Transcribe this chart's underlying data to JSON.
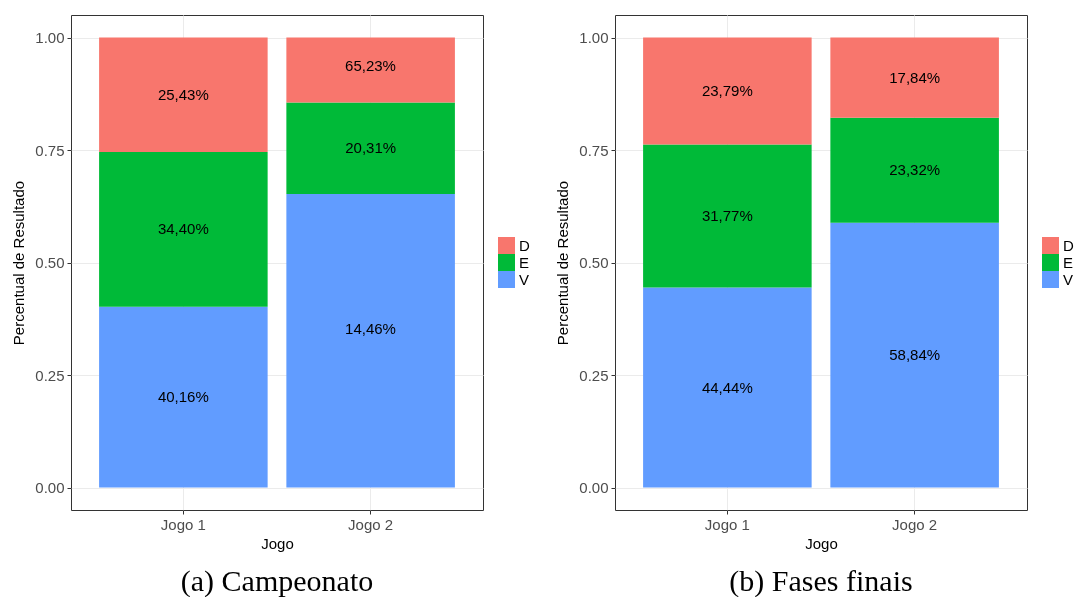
{
  "chart_data": [
    {
      "type": "bar",
      "title": "(a) Campeonato",
      "xlabel": "Jogo",
      "ylabel": "Percentual de Resultado",
      "categories": [
        "Jogo 1",
        "Jogo 2"
      ],
      "stacked": true,
      "series": [
        {
          "name": "V",
          "color": "#619cff",
          "values": [
            0.4016,
            0.6523
          ],
          "value_labels": [
            "40,16%",
            null
          ]
        },
        {
          "name": "E",
          "color": "#00ba38",
          "values": [
            0.344,
            0.2031
          ],
          "value_labels": [
            "34,40%",
            "20,31%"
          ]
        },
        {
          "name": "D",
          "color": "#f8766d",
          "values": [
            0.2543,
            0.1446
          ],
          "value_labels": [
            "25,43%",
            null
          ]
        }
      ],
      "annotations": [
        "65,23%",
        "14,46%"
      ],
      "ylim": [
        -0.05,
        1.05
      ],
      "yticks": [
        {
          "value": 0,
          "label": "0.00"
        },
        {
          "value": 0.25,
          "label": "0.25"
        },
        {
          "value": 0.5,
          "label": "0.50"
        },
        {
          "value": 0.75,
          "label": "0.75"
        },
        {
          "value": 1,
          "label": "1.00"
        }
      ],
      "grid": true,
      "legend": "right"
    },
    {
      "type": "bar",
      "title": "(b) Fases finais",
      "xlabel": "Jogo",
      "ylabel": "Percentual de Resultado",
      "categories": [
        "Jogo 1",
        "Jogo 2"
      ],
      "stacked": true,
      "series": [
        {
          "name": "V",
          "color": "#619cff",
          "values": [
            0.4444,
            0.5884
          ],
          "value_labels": [
            "44,44%",
            "58,84%"
          ]
        },
        {
          "name": "E",
          "color": "#00ba38",
          "values": [
            0.3177,
            0.2332
          ],
          "value_labels": [
            "31,77%",
            "23,32%"
          ]
        },
        {
          "name": "D",
          "color": "#f8766d",
          "values": [
            0.2379,
            0.1784
          ],
          "value_labels": [
            "23,79%",
            "17,84%"
          ]
        }
      ],
      "ylim": [
        -0.05,
        1.05
      ],
      "yticks": [
        {
          "value": 0,
          "label": "0.00"
        },
        {
          "value": 0.25,
          "label": "0.25"
        },
        {
          "value": 0.5,
          "label": "0.50"
        },
        {
          "value": 0.75,
          "label": "0.75"
        },
        {
          "value": 1,
          "label": "1.00"
        }
      ],
      "grid": true,
      "legend": "right"
    }
  ]
}
